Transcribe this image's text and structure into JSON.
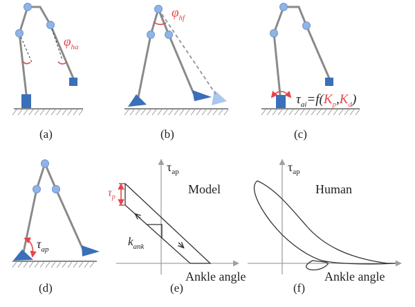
{
  "panels": {
    "a": {
      "caption": "(a)",
      "angle_symbol": "φ",
      "angle_sub": "ha"
    },
    "b": {
      "caption": "(b)",
      "angle_symbol": "φ",
      "angle_sub": "hf"
    },
    "c": {
      "caption": "(c)",
      "torque_symbol": "τ",
      "torque_sub": "ai",
      "eq": "=f(",
      "kp": "K",
      "kp_sub": "p",
      "comma": ",",
      "kd": "K",
      "kd_sub": "d",
      "close": ")"
    },
    "d": {
      "caption": "(d)",
      "torque_symbol": "τ",
      "torque_sub": "ap"
    },
    "e": {
      "caption": "(e)",
      "y_axis": "τ",
      "y_axis_sub": "ap",
      "title": "Model",
      "x_axis": "Ankle angle",
      "tau_p": "τ",
      "tau_p_sub": "p",
      "k_ank": "k",
      "k_ank_sub": "ank"
    },
    "f": {
      "caption": "(f)",
      "y_axis": "τ",
      "y_axis_sub": "ap",
      "title": "Human",
      "x_axis": "Ankle angle"
    }
  },
  "colors": {
    "link": "#8a8a8a",
    "joint": "#8fb4e6",
    "foot": "#3a6fba",
    "highlight": "#e4454b"
  }
}
